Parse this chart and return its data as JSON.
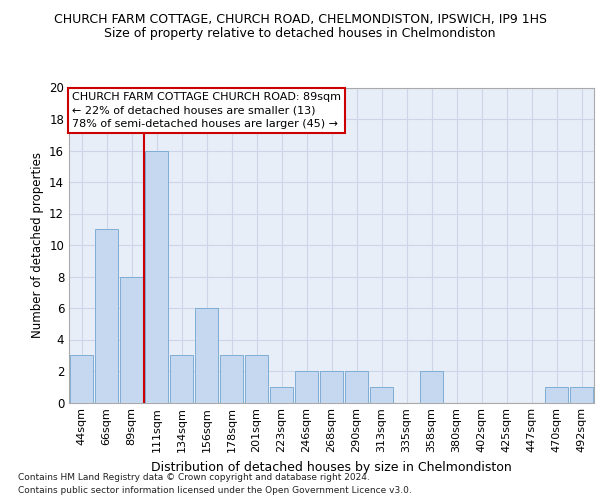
{
  "title1": "CHURCH FARM COTTAGE, CHURCH ROAD, CHELMONDISTON, IPSWICH, IP9 1HS",
  "title2": "Size of property relative to detached houses in Chelmondiston",
  "xlabel": "Distribution of detached houses by size in Chelmondiston",
  "ylabel": "Number of detached properties",
  "categories": [
    "44sqm",
    "66sqm",
    "89sqm",
    "111sqm",
    "134sqm",
    "156sqm",
    "178sqm",
    "201sqm",
    "223sqm",
    "246sqm",
    "268sqm",
    "290sqm",
    "313sqm",
    "335sqm",
    "358sqm",
    "380sqm",
    "402sqm",
    "425sqm",
    "447sqm",
    "470sqm",
    "492sqm"
  ],
  "values": [
    3,
    11,
    8,
    16,
    3,
    6,
    3,
    3,
    1,
    2,
    2,
    2,
    1,
    0,
    2,
    0,
    0,
    0,
    0,
    1,
    1
  ],
  "bar_color": "#c5d8f0",
  "bar_edge_color": "#7eadd4",
  "highlight_index": 2,
  "highlight_line_color": "#cc0000",
  "annotation_text": "CHURCH FARM COTTAGE CHURCH ROAD: 89sqm\n← 22% of detached houses are smaller (13)\n78% of semi-detached houses are larger (45) →",
  "annotation_box_color": "#ffffff",
  "annotation_box_edge_color": "#cc0000",
  "ylim": [
    0,
    20
  ],
  "yticks": [
    0,
    2,
    4,
    6,
    8,
    10,
    12,
    14,
    16,
    18,
    20
  ],
  "grid_color": "#ccd6e8",
  "footer_line1": "Contains HM Land Registry data © Crown copyright and database right 2024.",
  "footer_line2": "Contains public sector information licensed under the Open Government Licence v3.0.",
  "plot_bg_color": "#e8eef8",
  "fig_background_color": "#ffffff"
}
